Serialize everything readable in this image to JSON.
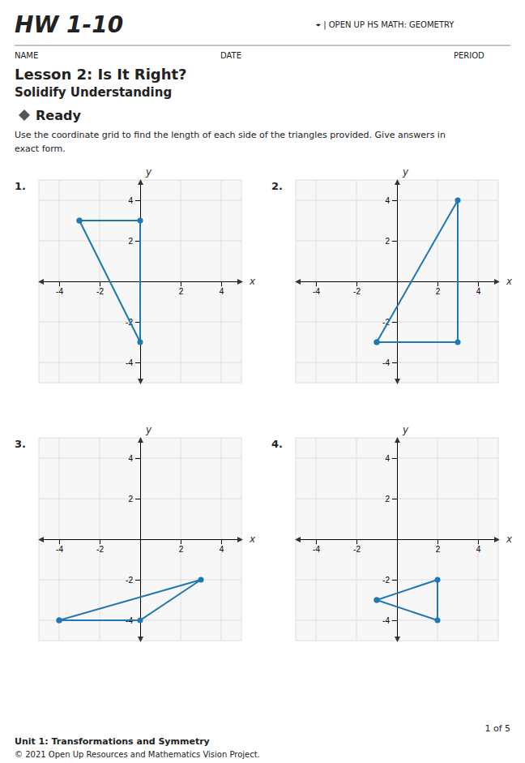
{
  "page": {
    "hw_text": "HW 1-10",
    "header_right": "⌖ |  OPEN UP HS MATH: GEOMETRY",
    "name_label": "NAME",
    "date_label": "DATE",
    "period_label": "PERIOD",
    "lesson_title": "Lesson 2: Is It Right?",
    "section_title": "Solidify Understanding",
    "section_label": "Ready",
    "instructions": "Use the coordinate grid to find the length of each side of the triangles provided. Give answers in\nexact form.",
    "footer_page": "1 of 5",
    "footer_unit": "Unit 1: Transformations and Symmetry",
    "footer_copy": "© 2021 Open Up Resources and Mathematics Vision Project."
  },
  "chart_data": [
    {
      "type": "line",
      "title": "1.",
      "marker": "circle",
      "grid": true,
      "xlabel": "x",
      "ylabel": "y",
      "x": [
        -3,
        0,
        0,
        -3
      ],
      "values": [
        3,
        3,
        -3,
        3
      ],
      "xlim": [
        -5,
        5
      ],
      "ylim": [
        -5,
        5
      ],
      "xticks": [
        -4,
        -2,
        2,
        4
      ],
      "yticks": [
        -4,
        -2,
        2,
        4
      ]
    },
    {
      "type": "line",
      "title": "2.",
      "marker": "circle",
      "grid": true,
      "xlabel": "x",
      "ylabel": "y",
      "x": [
        -1,
        3,
        3,
        -1
      ],
      "values": [
        -3,
        -3,
        4,
        -3
      ],
      "xlim": [
        -5,
        5
      ],
      "ylim": [
        -5,
        5
      ],
      "xticks": [
        -4,
        -2,
        2,
        4
      ],
      "yticks": [
        -4,
        -2,
        2,
        4
      ]
    },
    {
      "type": "line",
      "title": "3.",
      "marker": "circle",
      "grid": true,
      "xlabel": "x",
      "ylabel": "y",
      "x": [
        -4,
        0,
        3,
        -4
      ],
      "values": [
        -4,
        -4,
        -2,
        -4
      ],
      "xlim": [
        -5,
        5
      ],
      "ylim": [
        -5,
        5
      ],
      "xticks": [
        -4,
        -2,
        2,
        4
      ],
      "yticks": [
        -4,
        -2,
        2,
        4
      ]
    },
    {
      "type": "line",
      "title": "4.",
      "marker": "circle",
      "grid": true,
      "xlabel": "x",
      "ylabel": "y",
      "x": [
        -1,
        2,
        2,
        -1
      ],
      "values": [
        -3,
        -4,
        -2,
        -3
      ],
      "xlim": [
        -5,
        5
      ],
      "ylim": [
        -5,
        5
      ],
      "xticks": [
        -4,
        -2,
        2,
        4
      ],
      "yticks": [
        -4,
        -2,
        2,
        4
      ]
    }
  ]
}
